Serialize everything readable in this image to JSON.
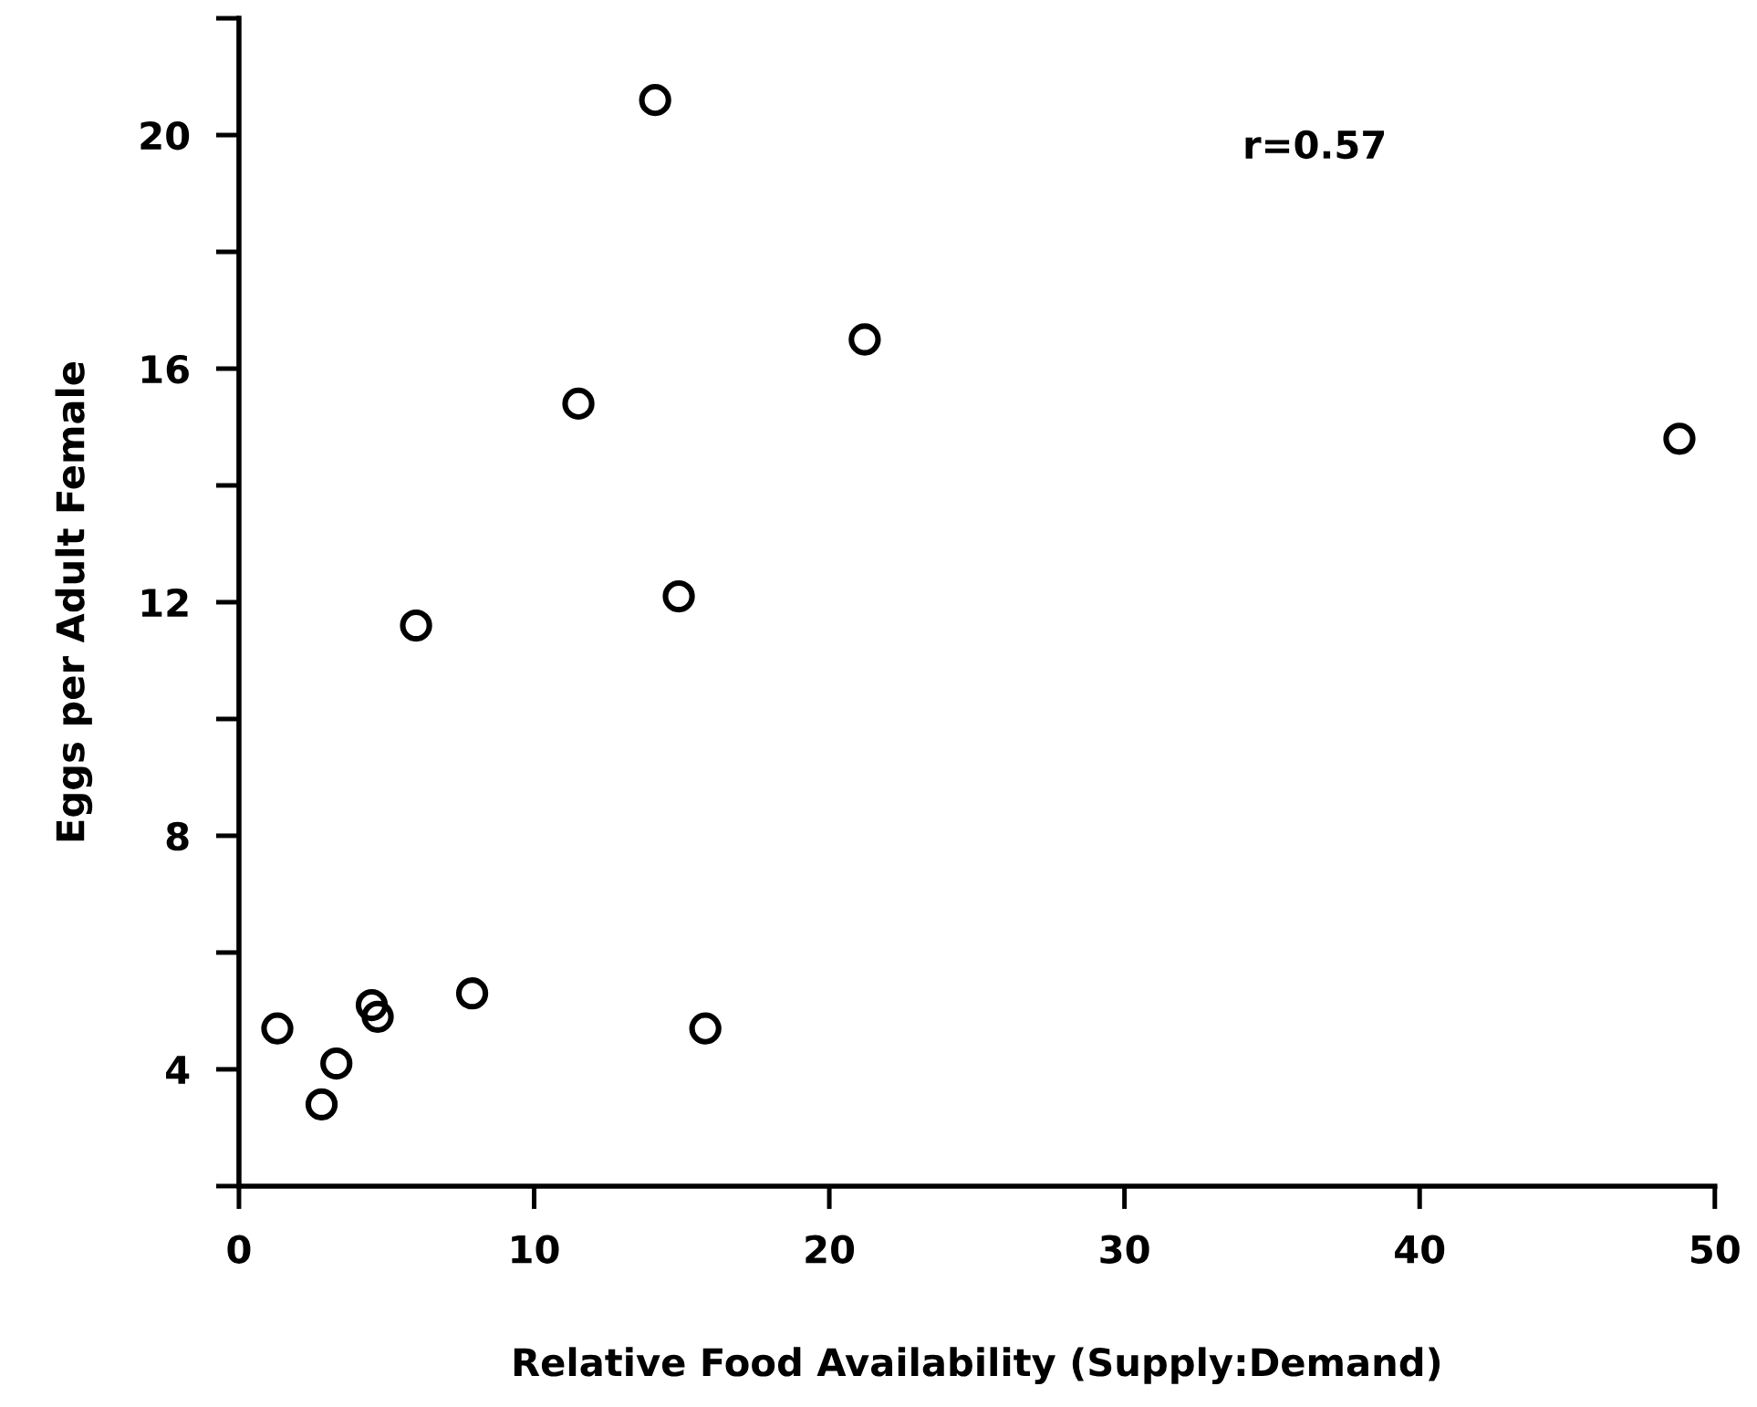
{
  "chart_data": {
    "type": "scatter",
    "xlabel": "Relative Food Availability (Supply:Demand)",
    "ylabel": "Eggs per Adult Female",
    "annotations": [
      "r=0.57"
    ],
    "x": [
      1.3,
      2.8,
      3.3,
      4.5,
      4.7,
      6.0,
      7.9,
      11.5,
      14.1,
      14.9,
      15.8,
      21.2,
      48.8
    ],
    "series": [
      {
        "color": "#000000",
        "values": [
          4.7,
          3.4,
          4.1,
          5.1,
          4.9,
          11.6,
          5.3,
          15.4,
          20.6,
          12.1,
          4.7,
          16.5,
          14.8
        ]
      }
    ],
    "marker": "circle",
    "xlim": [
      0,
      50
    ],
    "xticks": [
      0,
      10,
      20,
      30,
      40,
      50
    ],
    "ylim": [
      2,
      22
    ],
    "yticks": [
      {
        "value": 2,
        "label": null
      },
      4,
      {
        "value": 6,
        "label": null
      },
      8,
      {
        "value": 10,
        "label": null
      },
      12,
      {
        "value": 14,
        "label": null
      },
      16,
      {
        "value": 18,
        "label": null
      },
      20,
      {
        "value": 22,
        "label": null
      }
    ],
    "grid": false,
    "legend": false
  }
}
